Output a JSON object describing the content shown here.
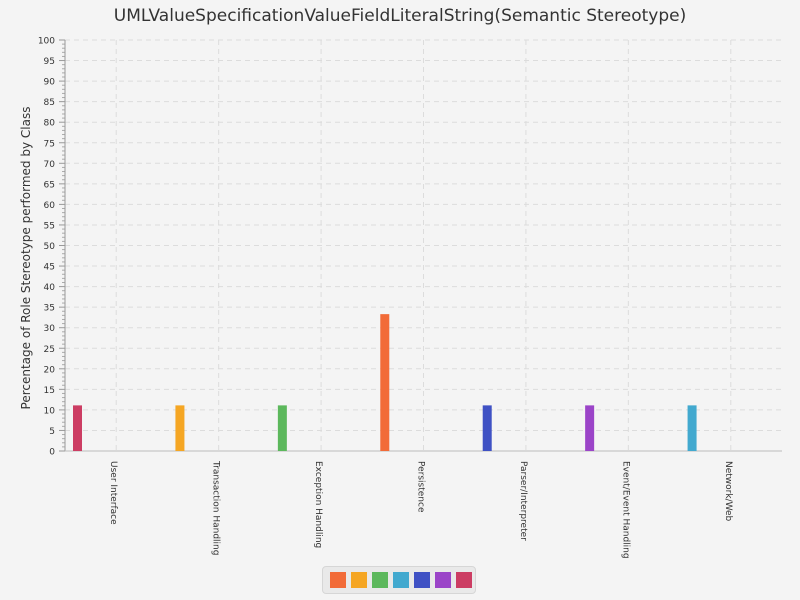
{
  "chart_data": {
    "type": "bar",
    "title": "UMLValueSpecificationValueFieldLiteralString(Semantic Stereotype)",
    "xlabel": "",
    "ylabel": "Percentage of Role Stereotype performed by Class",
    "ylim": [
      0,
      100
    ],
    "ytick_step": 5,
    "grid": true,
    "legend_position": "bottom",
    "categories": [
      "User Interface",
      "Transaction Handling",
      "Exception Handling",
      "Persistence",
      "Parser/Interpreter",
      "Event/Event Handling",
      "Network/Web"
    ],
    "series": [
      {
        "color": "#f26b38",
        "values": [
          0,
          0,
          0,
          33.3,
          0,
          0,
          0
        ]
      },
      {
        "color": "#f5a623",
        "values": [
          0,
          11.1,
          0,
          0,
          0,
          0,
          0
        ]
      },
      {
        "color": "#5cb85c",
        "values": [
          0,
          0,
          11.1,
          0,
          0,
          0,
          0
        ]
      },
      {
        "color": "#42a9cf",
        "values": [
          0,
          0,
          0,
          0,
          0,
          0,
          11.1
        ]
      },
      {
        "color": "#3f51c4",
        "values": [
          0,
          0,
          0,
          0,
          11.1,
          0,
          0
        ]
      },
      {
        "color": "#9b44c8",
        "values": [
          0,
          0,
          0,
          0,
          0,
          11.1,
          0
        ]
      },
      {
        "color": "#cc3d63",
        "values": [
          11.1,
          0,
          0,
          0,
          0,
          0,
          0
        ]
      }
    ]
  }
}
